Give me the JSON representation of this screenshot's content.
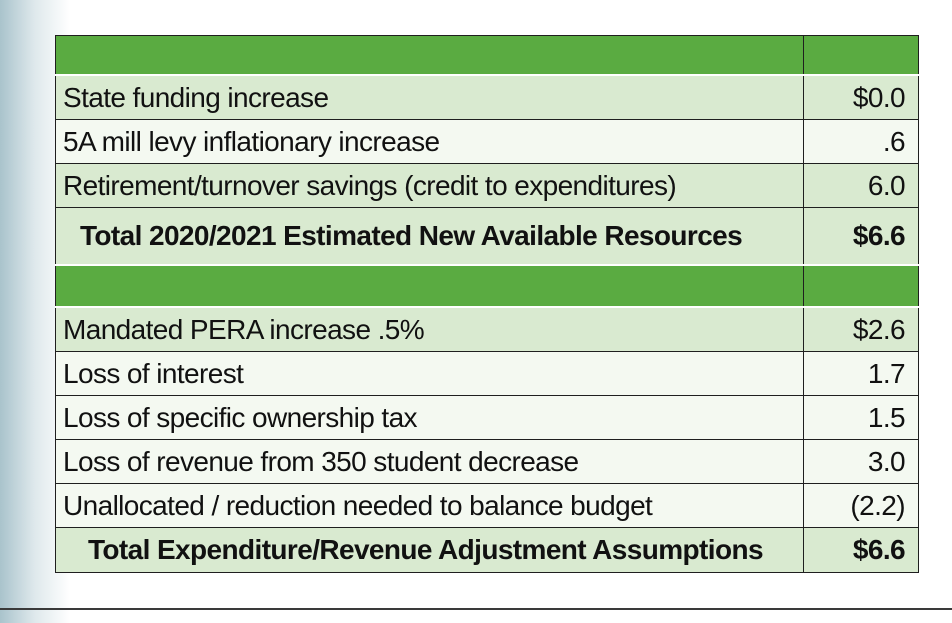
{
  "section1": {
    "rows": [
      {
        "label": "State funding increase",
        "value": "$0.0"
      },
      {
        "label": "5A mill levy inflationary increase",
        "value": ".6"
      },
      {
        "label": "Retirement/turnover savings (credit to expenditures)",
        "value": "6.0"
      }
    ],
    "total": {
      "label": "Total 2020/2021 Estimated New Available Resources",
      "value": "$6.6"
    }
  },
  "section2": {
    "rows": [
      {
        "label": "Mandated PERA increase .5%",
        "value": "$2.6"
      },
      {
        "label": "Loss of interest",
        "value": "1.7"
      },
      {
        "label": "Loss of specific ownership tax",
        "value": "1.5"
      },
      {
        "label": "Loss of revenue from 350 student decrease",
        "value": "3.0"
      },
      {
        "label": "Unallocated / reduction needed to balance budget",
        "value": "(2.2)"
      }
    ],
    "total": {
      "label": "Total Expenditure/Revenue Adjustment Assumptions",
      "value": "$6.6"
    }
  },
  "colors": {
    "header_green": "#5aab41",
    "row_light_green": "#d9ead0",
    "row_pale": "#f4f9f1"
  }
}
